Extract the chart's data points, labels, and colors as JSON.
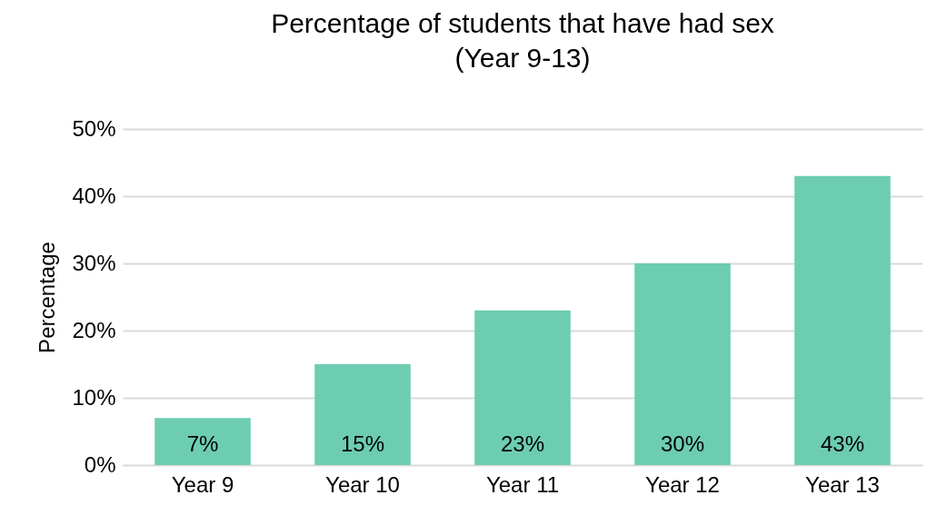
{
  "chart_data": {
    "type": "bar",
    "title": "Percentage of students that have had sex\n(Year 9-13)",
    "ylabel": "Percentage",
    "categories": [
      "Year 9",
      "Year 10",
      "Year 11",
      "Year 12",
      "Year 13"
    ],
    "values": [
      7,
      15,
      23,
      30,
      43
    ],
    "value_labels": [
      "7%",
      "15%",
      "23%",
      "30%",
      "43%"
    ],
    "color": "#6dcdb1",
    "ylim": [
      0,
      50
    ],
    "yticks": [
      {
        "value": 0,
        "label": "0%"
      },
      {
        "value": 10,
        "label": "10%"
      },
      {
        "value": 20,
        "label": "20%"
      },
      {
        "value": 30,
        "label": "30%"
      },
      {
        "value": 40,
        "label": "40%"
      },
      {
        "value": 50,
        "label": "50%"
      }
    ],
    "grid": "y"
  }
}
